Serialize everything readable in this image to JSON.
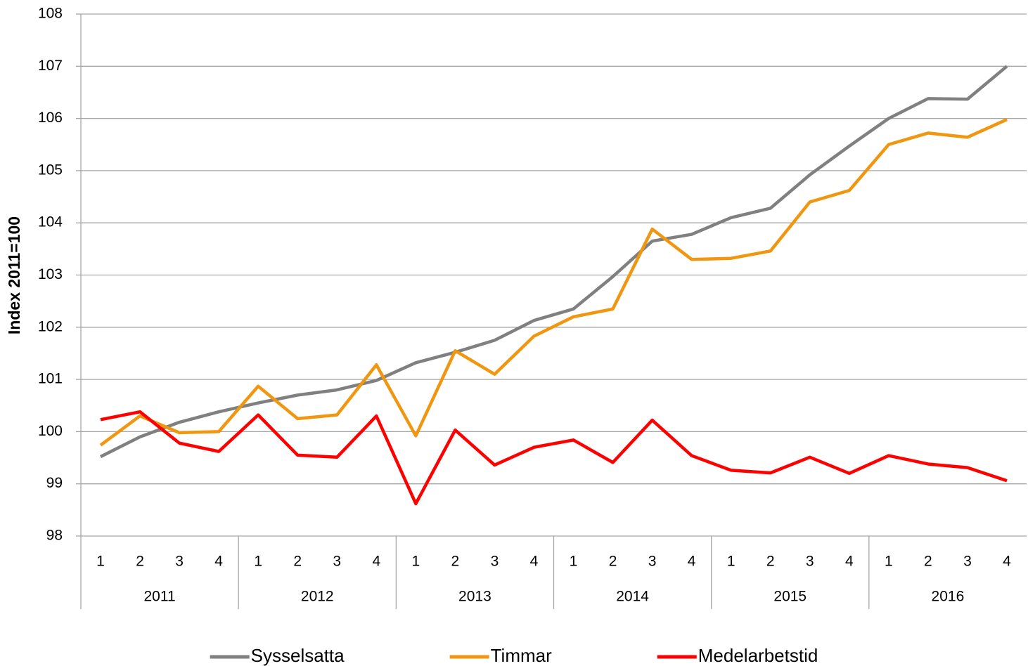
{
  "chart_data": {
    "type": "line",
    "y_label": "Index 2011=100",
    "categories": [
      "1",
      "2",
      "3",
      "4",
      "1",
      "2",
      "3",
      "4",
      "1",
      "2",
      "3",
      "4",
      "1",
      "2",
      "3",
      "4",
      "1",
      "2",
      "3",
      "4",
      "1",
      "2",
      "3",
      "4"
    ],
    "category_groups": [
      "2011",
      "2012",
      "2013",
      "2014",
      "2015",
      "2016"
    ],
    "series": [
      {
        "name": "Sysselsatta",
        "color": "#808080",
        "values": [
          99.52,
          99.9,
          100.18,
          100.38,
          100.55,
          100.7,
          100.8,
          100.98,
          101.32,
          101.52,
          101.75,
          102.13,
          102.35,
          102.97,
          103.65,
          103.78,
          104.1,
          104.28,
          104.92,
          105.47,
          106.0,
          106.38,
          106.37,
          107.0
        ]
      },
      {
        "name": "Timmar",
        "color": "#f0960f",
        "values": [
          99.74,
          100.3,
          99.98,
          100.0,
          100.87,
          100.25,
          100.32,
          101.28,
          99.92,
          101.55,
          101.1,
          101.83,
          102.2,
          102.35,
          103.88,
          103.3,
          103.32,
          103.46,
          104.4,
          104.62,
          105.5,
          105.72,
          105.64,
          105.98
        ]
      },
      {
        "name": "Medelarbetstid",
        "color": "#ff0000",
        "values": [
          100.23,
          100.38,
          99.78,
          99.62,
          100.32,
          99.55,
          99.51,
          100.3,
          98.62,
          100.03,
          99.36,
          99.7,
          99.84,
          99.41,
          100.22,
          99.54,
          99.26,
          99.21,
          99.51,
          99.2,
          99.54,
          99.38,
          99.31,
          99.06
        ]
      }
    ],
    "ylim": [
      98,
      108
    ],
    "yticks": [
      98,
      99,
      100,
      101,
      102,
      103,
      104,
      105,
      106,
      107,
      108
    ],
    "grid": true,
    "legend": "bottom"
  }
}
